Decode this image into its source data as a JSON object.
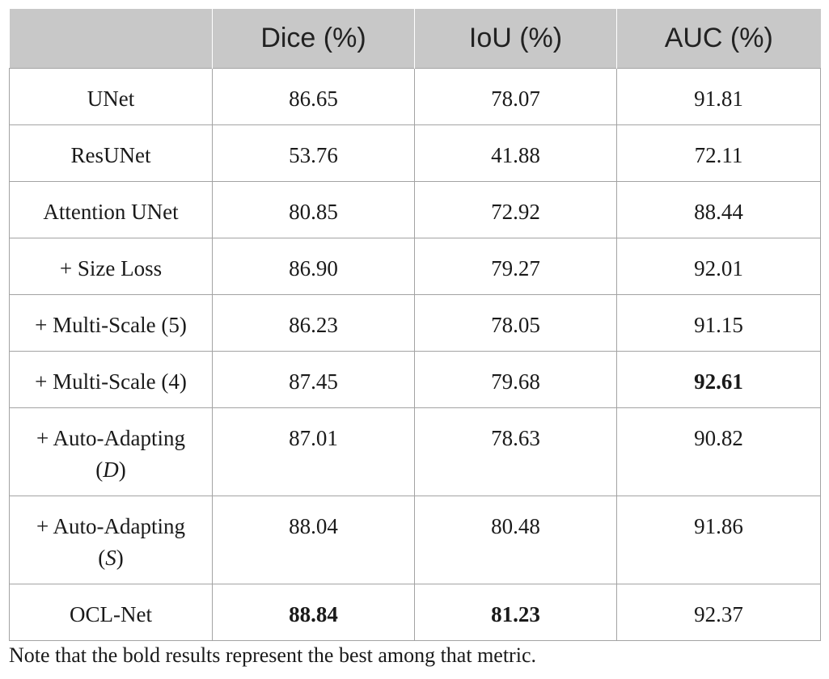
{
  "table": {
    "headers": [
      "",
      "Dice (%)",
      "IoU (%)",
      "AUC (%)"
    ],
    "rows": [
      {
        "method": "UNet",
        "dice": "86.65",
        "iou": "78.07",
        "auc": "91.81",
        "bold": []
      },
      {
        "method": "ResUNet",
        "dice": "53.76",
        "iou": "41.88",
        "auc": "72.11",
        "bold": []
      },
      {
        "method": "Attention UNet",
        "dice": "80.85",
        "iou": "72.92",
        "auc": "88.44",
        "bold": []
      },
      {
        "method": "+ Size Loss",
        "dice": "86.90",
        "iou": "79.27",
        "auc": "92.01",
        "bold": []
      },
      {
        "method": "+ Multi-Scale (5)",
        "dice": "86.23",
        "iou": "78.05",
        "auc": "91.15",
        "bold": []
      },
      {
        "method": "+ Multi-Scale (4)",
        "dice": "87.45",
        "iou": "79.68",
        "auc": "92.61",
        "bold": [
          "auc"
        ]
      },
      {
        "method": "+ Auto-Adapting",
        "method_var": "D",
        "dice": "87.01",
        "iou": "78.63",
        "auc": "90.82",
        "bold": []
      },
      {
        "method": "+ Auto-Adapting",
        "method_var": "S",
        "dice": "88.04",
        "iou": "80.48",
        "auc": "91.86",
        "bold": []
      },
      {
        "method": "OCL-Net",
        "dice": "88.84",
        "iou": "81.23",
        "auc": "92.37",
        "bold": [
          "dice",
          "iou"
        ]
      }
    ]
  },
  "note": "Note that the bold results represent the best among that metric."
}
